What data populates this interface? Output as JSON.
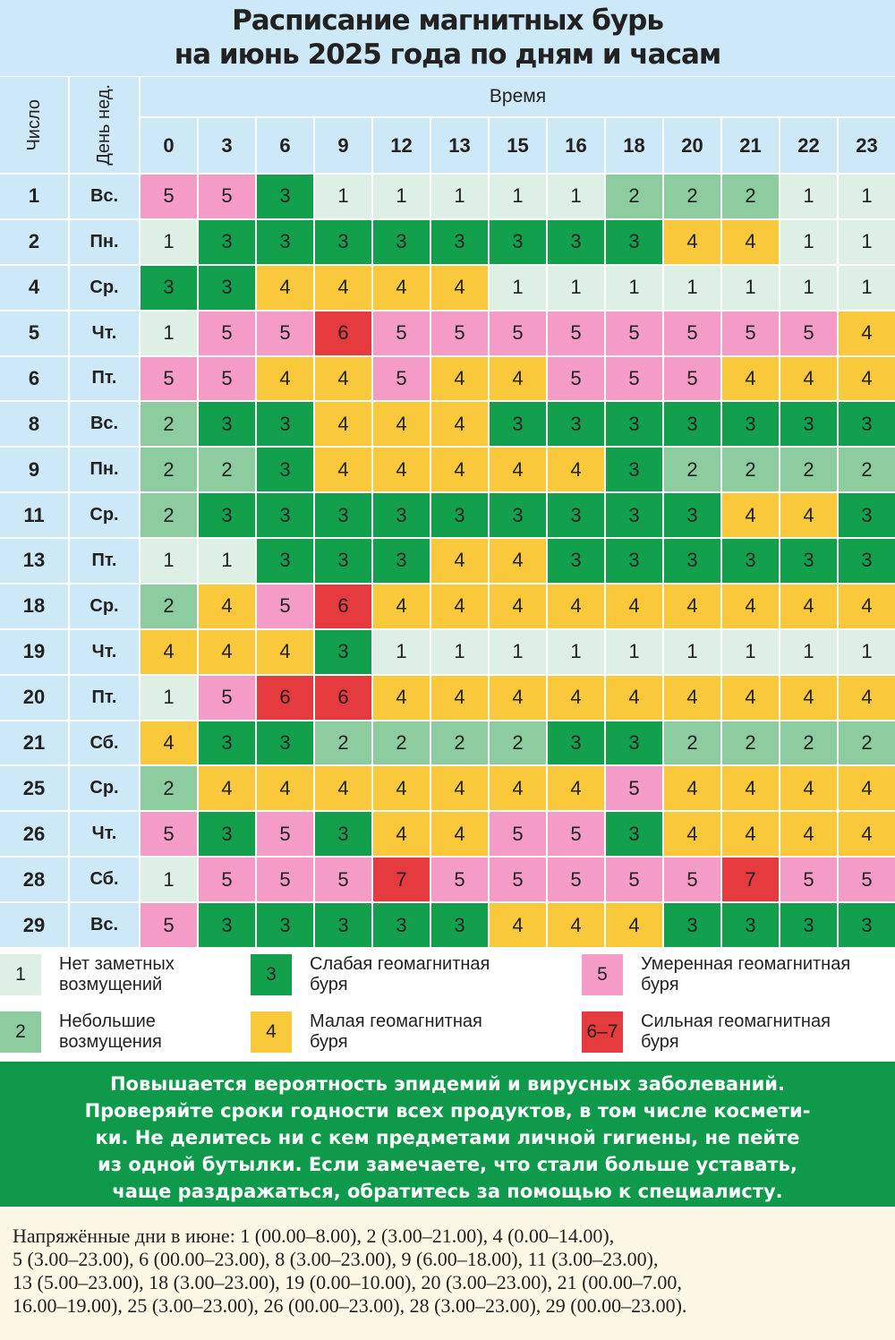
{
  "header": {
    "title": [
      "Расписание магнитных бурь",
      "на июнь 2025 года по дням и часам"
    ]
  },
  "table": {
    "day_header": "Число",
    "weekday_header": "День нед.",
    "time_header": "Время",
    "hours": [
      0,
      3,
      6,
      9,
      12,
      13,
      15,
      16,
      18,
      20,
      21,
      22,
      23
    ],
    "rows": [
      {
        "day": 1,
        "weekday": "Вс.",
        "values": [
          5,
          5,
          3,
          1,
          1,
          1,
          1,
          1,
          2,
          2,
          2,
          1,
          1
        ]
      },
      {
        "day": 2,
        "weekday": "Пн.",
        "values": [
          1,
          3,
          3,
          3,
          3,
          3,
          3,
          3,
          3,
          4,
          4,
          1,
          1
        ]
      },
      {
        "day": 4,
        "weekday": "Ср.",
        "values": [
          3,
          3,
          4,
          4,
          4,
          4,
          1,
          1,
          1,
          1,
          1,
          1,
          1
        ]
      },
      {
        "day": 5,
        "weekday": "Чт.",
        "values": [
          1,
          5,
          5,
          6,
          5,
          5,
          5,
          5,
          5,
          5,
          5,
          5,
          4
        ]
      },
      {
        "day": 6,
        "weekday": "Пт.",
        "values": [
          5,
          5,
          4,
          4,
          5,
          4,
          4,
          5,
          5,
          5,
          4,
          4,
          4
        ]
      },
      {
        "day": 8,
        "weekday": "Вс.",
        "values": [
          2,
          3,
          3,
          4,
          4,
          4,
          3,
          3,
          3,
          3,
          3,
          3,
          3
        ]
      },
      {
        "day": 9,
        "weekday": "Пн.",
        "values": [
          2,
          2,
          3,
          4,
          4,
          4,
          4,
          4,
          3,
          2,
          2,
          2,
          2
        ]
      },
      {
        "day": 11,
        "weekday": "Ср.",
        "values": [
          2,
          3,
          3,
          3,
          3,
          3,
          3,
          3,
          3,
          3,
          4,
          4,
          3
        ]
      },
      {
        "day": 13,
        "weekday": "Пт.",
        "values": [
          1,
          1,
          3,
          3,
          3,
          4,
          4,
          3,
          3,
          3,
          3,
          3,
          3
        ]
      },
      {
        "day": 18,
        "weekday": "Ср.",
        "values": [
          2,
          4,
          5,
          6,
          4,
          4,
          4,
          4,
          4,
          4,
          4,
          4,
          4
        ]
      },
      {
        "day": 19,
        "weekday": "Чт.",
        "values": [
          4,
          4,
          4,
          3,
          1,
          1,
          1,
          1,
          1,
          1,
          1,
          1,
          1
        ]
      },
      {
        "day": 20,
        "weekday": "Пт.",
        "values": [
          1,
          5,
          6,
          6,
          4,
          4,
          4,
          4,
          4,
          4,
          4,
          4,
          4
        ]
      },
      {
        "day": 21,
        "weekday": "Сб.",
        "values": [
          4,
          3,
          3,
          2,
          2,
          2,
          2,
          3,
          3,
          2,
          2,
          2,
          2
        ]
      },
      {
        "day": 25,
        "weekday": "Ср.",
        "values": [
          2,
          4,
          4,
          4,
          4,
          4,
          4,
          4,
          5,
          4,
          4,
          4,
          4
        ]
      },
      {
        "day": 26,
        "weekday": "Чт.",
        "values": [
          5,
          3,
          5,
          3,
          4,
          4,
          5,
          5,
          3,
          4,
          4,
          4,
          4
        ]
      },
      {
        "day": 28,
        "weekday": "Сб.",
        "values": [
          1,
          5,
          5,
          5,
          7,
          5,
          5,
          5,
          5,
          5,
          7,
          5,
          5
        ]
      },
      {
        "day": 29,
        "weekday": "Вс.",
        "values": [
          5,
          3,
          3,
          3,
          3,
          3,
          4,
          4,
          4,
          3,
          3,
          3,
          3
        ]
      }
    ]
  },
  "legend": [
    {
      "key": "1",
      "text": [
        "Нет заметных",
        "возмущений"
      ],
      "color": "#deefe3"
    },
    {
      "key": "2",
      "text": [
        "Небольшие",
        "возмущения"
      ],
      "color": "#8ccc9f"
    },
    {
      "key": "3",
      "text": [
        "Слабая геомагнитная",
        "буря"
      ],
      "color": "#13a04d"
    },
    {
      "key": "4",
      "text": [
        "Малая геомагнитная",
        "буря"
      ],
      "color": "#f9c83b"
    },
    {
      "key": "5",
      "text": [
        "Умеренная геомагнитная",
        "буря"
      ],
      "color": "#f49bc7"
    },
    {
      "key": "6–7",
      "text": [
        "Сильная геомагнитная",
        "буря"
      ],
      "color": "#e53a3e"
    }
  ],
  "banner": [
    "Повышается вероятность эпидемий и вирусных заболеваний.",
    "Проверяйте сроки годности всех продуктов, в том числе космети-",
    "ки. Не делитесь ни с кем предметами личной гигиены, не пейте",
    "из одной бутылки. Если замечаете, что стали больше уставать,",
    "чаще раздражаться, обратитесь за помощью к специалисту."
  ],
  "footer": [
    "Напряжённые дни в июне: 1 (00.00–8.00), 2 (3.00–21.00), 4 (0.00–14.00),",
    "5 (3.00–23.00), 6 (00.00–23.00), 8 (3.00–23.00), 9 (6.00–18.00), 11 (3.00–23.00),",
    "13 (5.00–23.00), 18 (3.00–23.00), 19 (0.00–10.00), 20 (3.00–23.00), 21 (00.00–7.00,",
    "16.00–19.00), 25 (3.00–23.00), 26 (00.00–23.00), 28 (3.00–23.00), 29 (00.00–23.00)."
  ]
}
